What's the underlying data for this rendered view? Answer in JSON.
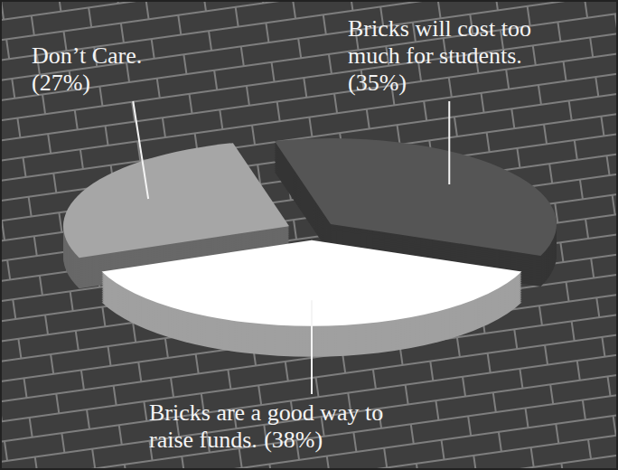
{
  "chart_data": {
    "type": "pie",
    "categories": [
      "Don’t Care.",
      "Bricks will cost too much for students.",
      "Bricks are a good way to raise funds."
    ],
    "values": [
      27,
      35,
      38
    ],
    "value_labels": [
      "(27%)",
      "(35%)",
      "(38%)"
    ],
    "colors": [
      "#a6a6a6",
      "#555555",
      "#ffffff"
    ],
    "data_labels": true
  }
}
